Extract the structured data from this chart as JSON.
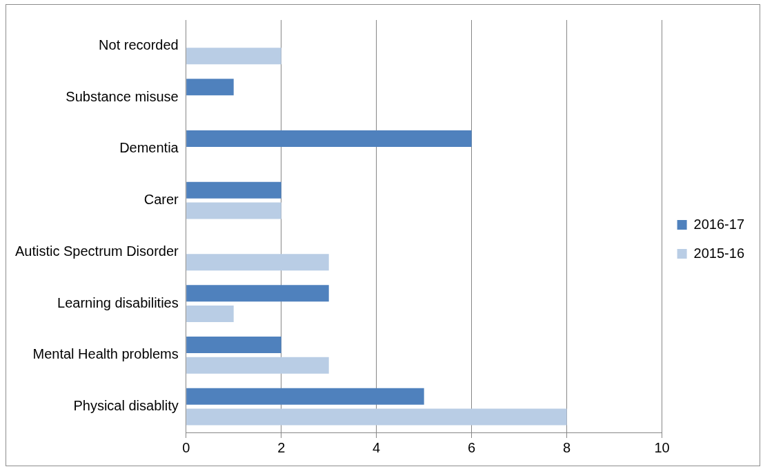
{
  "chart_data": {
    "type": "bar",
    "orientation": "horizontal",
    "categories": [
      "Not recorded",
      "Substance misuse",
      "Dementia",
      "Carer",
      "Autistic Spectrum Disorder",
      "Learning disabilities",
      "Mental Health problems",
      "Physical disablity"
    ],
    "series": [
      {
        "name": "2016-17",
        "color": "#4f81bd",
        "values": [
          0,
          1,
          6,
          2,
          0,
          3,
          2,
          5
        ]
      },
      {
        "name": "2015-16",
        "color": "#b9cde5",
        "values": [
          2,
          0,
          0,
          2,
          3,
          1,
          3,
          8
        ]
      }
    ],
    "xlim": [
      0,
      10
    ],
    "xticks": [
      0,
      2,
      4,
      6,
      8,
      10
    ],
    "grid": "x",
    "legend": "right"
  }
}
